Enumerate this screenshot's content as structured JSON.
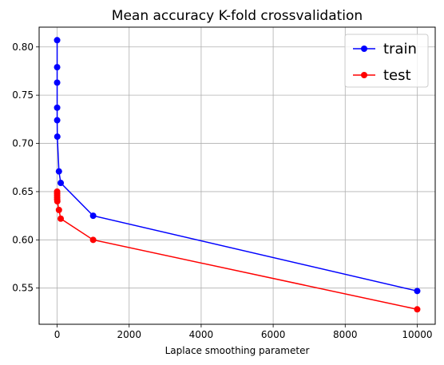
{
  "chart_data": {
    "type": "line",
    "title": "Mean accuracy K-fold crossvalidation",
    "xlabel": "Laplace smoothing parameter",
    "ylabel": "",
    "xlim": [
      -500,
      10500
    ],
    "ylim": [
      0.5125,
      0.8205
    ],
    "xticks": [
      0,
      2000,
      4000,
      6000,
      8000,
      10000
    ],
    "xtick_labels": [
      "0",
      "2000",
      "4000",
      "6000",
      "8000",
      "10000"
    ],
    "yticks": [
      0.55,
      0.6,
      0.65,
      0.7,
      0.75,
      0.8
    ],
    "ytick_labels": [
      "0.55",
      "0.60",
      "0.65",
      "0.70",
      "0.75",
      "0.80"
    ],
    "grid": true,
    "legend_position": "top-right",
    "x": [
      0.001,
      0.01,
      0.1,
      0.5,
      1,
      5,
      50,
      100,
      1000,
      10000
    ],
    "series": [
      {
        "name": "train",
        "color": "#0000ff",
        "values": [
          0.807,
          0.779,
          0.763,
          0.737,
          0.724,
          0.707,
          0.671,
          0.659,
          0.625,
          0.547
        ]
      },
      {
        "name": "test",
        "color": "#ff0000",
        "values": [
          0.65,
          0.648,
          0.646,
          0.644,
          0.642,
          0.64,
          0.631,
          0.622,
          0.6,
          0.528
        ]
      }
    ]
  }
}
